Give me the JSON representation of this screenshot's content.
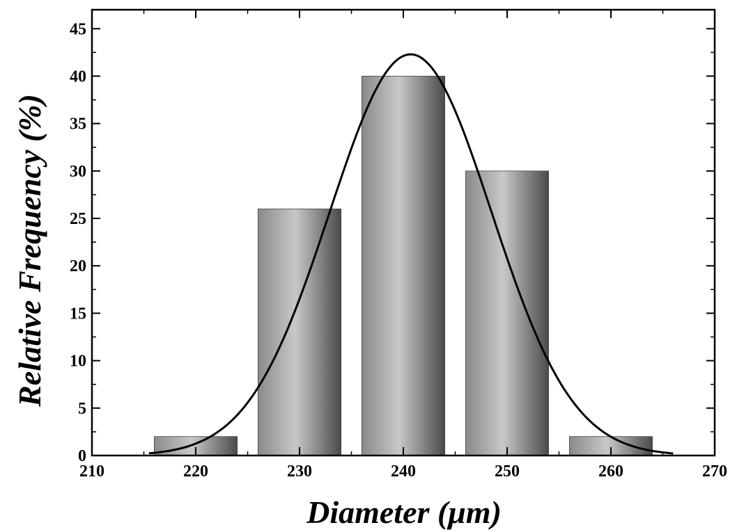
{
  "chart_data": {
    "type": "bar",
    "title": "",
    "xlabel": "Diameter (μm)",
    "ylabel": "Relative Frequency (%)",
    "xlim": [
      210,
      270
    ],
    "ylim": [
      0,
      47
    ],
    "xticks": [
      210,
      220,
      230,
      240,
      250,
      260,
      270
    ],
    "yticks": [
      0,
      5,
      10,
      15,
      20,
      25,
      30,
      35,
      40,
      45
    ],
    "bars": [
      {
        "x": 220,
        "value": 2
      },
      {
        "x": 230,
        "value": 26
      },
      {
        "x": 240,
        "value": 40
      },
      {
        "x": 250,
        "value": 30
      },
      {
        "x": 260,
        "value": 2
      }
    ],
    "bar_width": 8,
    "fit_curve": {
      "type": "gaussian",
      "mean": 240.7,
      "sigma": 7.8,
      "peak": 42.3
    },
    "grid": false,
    "legend": "none",
    "colors": {
      "bar_dark": "#555555",
      "bar_light": "#c8c8c8",
      "curve": "#000000",
      "axis": "#000000"
    }
  }
}
